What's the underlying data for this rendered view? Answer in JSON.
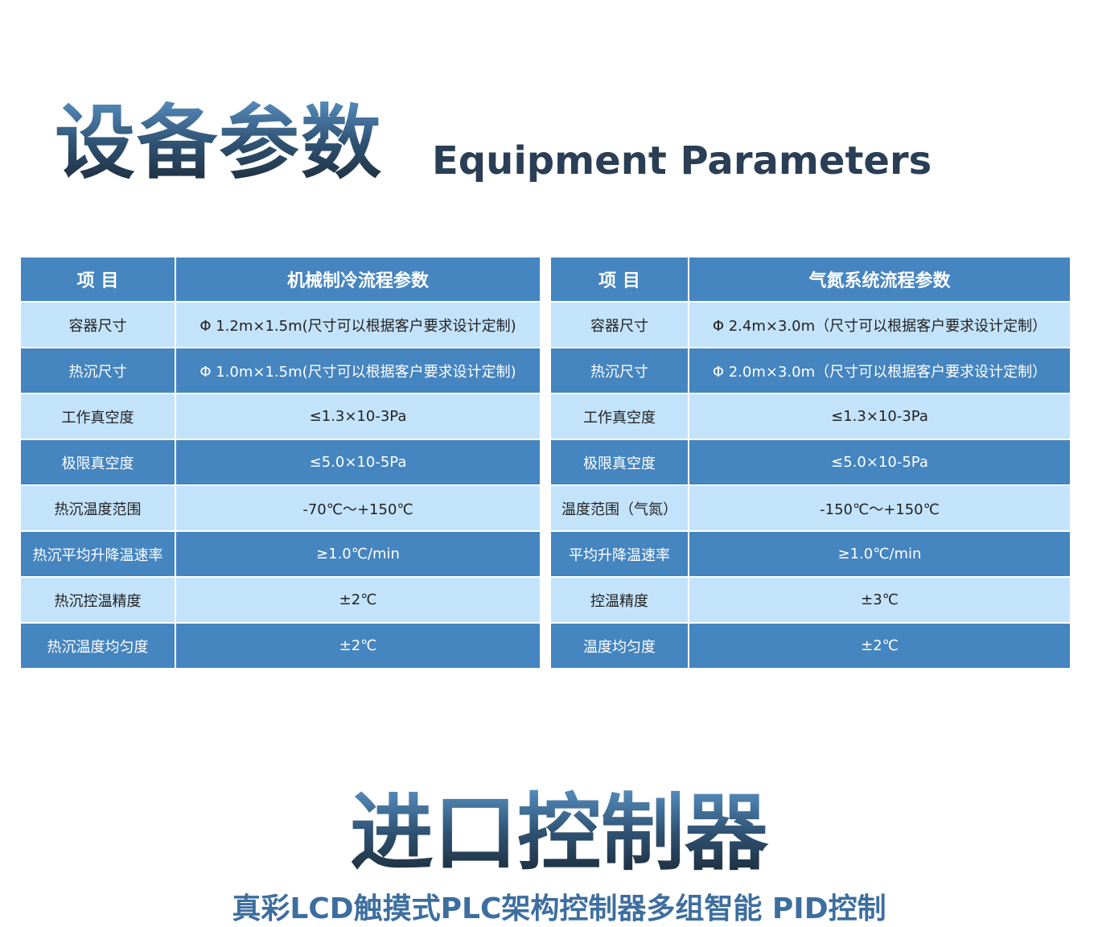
{
  "header": {
    "title": "设备参数",
    "subtitle": "Equipment Parameters"
  },
  "tables": [
    {
      "columns": [
        "项 目",
        "机械制冷流程参数"
      ],
      "rows": [
        [
          "容器尺寸",
          "Φ 1.2m×1.5m(尺寸可以根据客户要求设计定制)"
        ],
        [
          "热沉尺寸",
          "Φ 1.0m×1.5m(尺寸可以根据客户要求设计定制)"
        ],
        [
          "工作真空度",
          "≤1.3×10-3Pa"
        ],
        [
          "极限真空度",
          "≤5.0×10-5Pa"
        ],
        [
          "热沉温度范围",
          "-70℃～+150℃"
        ],
        [
          "热沉平均升降温速率",
          "≥1.0℃/min"
        ],
        [
          "热沉控温精度",
          "±2℃"
        ],
        [
          "热沉温度均匀度",
          "±2℃"
        ]
      ]
    },
    {
      "columns": [
        "项 目",
        "气氮系统流程参数"
      ],
      "rows": [
        [
          "容器尺寸",
          "Φ 2.4m×3.0m（尺寸可以根据客户要求设计定制）"
        ],
        [
          "热沉尺寸",
          "Φ 2.0m×3.0m（尺寸可以根据客户要求设计定制）"
        ],
        [
          "工作真空度",
          "≤1.3×10-3Pa"
        ],
        [
          "极限真空度",
          "≤5.0×10-5Pa"
        ],
        [
          "温度范围（气氮）",
          "-150℃～+150℃"
        ],
        [
          "平均升降温速率",
          "≥1.0℃/min"
        ],
        [
          "控温精度",
          "±3℃"
        ],
        [
          "温度均匀度",
          "±2℃"
        ]
      ]
    }
  ],
  "section": {
    "title": "进口控制器",
    "subtitle": "真彩LCD触摸式PLC架构控制器多组智能 PID控制"
  }
}
